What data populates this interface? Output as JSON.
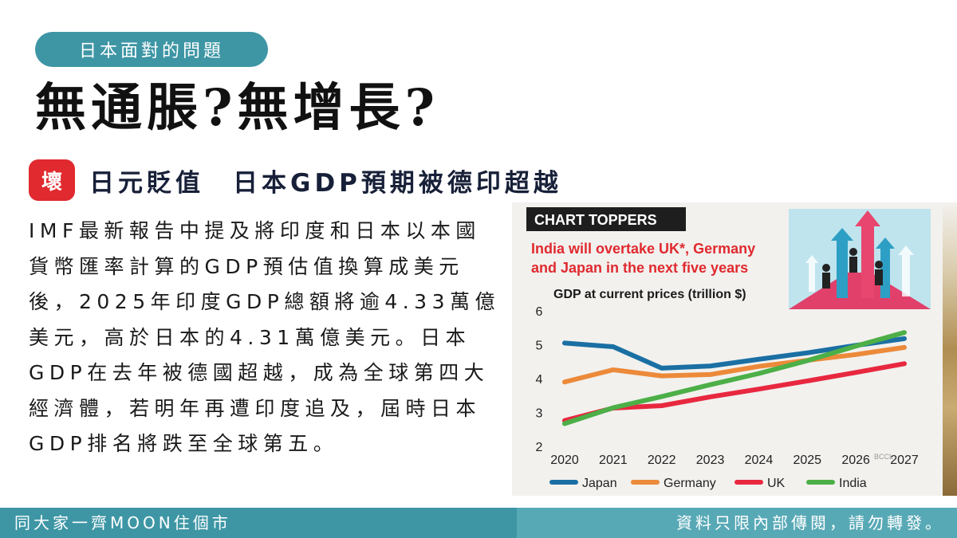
{
  "slide": {
    "topic_label": "日本面對的問題",
    "headline": "無通脹?無增長?",
    "bad_badge": "壞",
    "subheadline": "日元貶值　日本GDP預期被德印超越",
    "body": "IMF最新報告中提及將印度和日本以本國貨幣匯率計算的GDP預估值換算成美元後，2025年印度GDP總額將逾4.33萬億美元，高於日本的4.31萬億美元。日本GDP在去年被德國超越，成為全球第四大經濟體，若明年再遭印度追及，屆時日本GDP排名將跌至全球第五。",
    "footer_left": "同大家一齊MOON住個市",
    "footer_right": "資料只限內部傳閱，請勿轉發。"
  },
  "chart_data": {
    "type": "line",
    "banner": "CHART TOPPERS",
    "title": "India will overtake UK*, Germany and Japan in the next five years",
    "title_lines": [
      "India will overtake UK*, Germany",
      "and Japan in the next five years"
    ],
    "ylabel": "GDP at current prices (trillion $)",
    "watermark": "BCCL",
    "x": [
      2020,
      2021,
      2022,
      2023,
      2024,
      2025,
      2026,
      2027
    ],
    "ylim": [
      2,
      6
    ],
    "yticks": [
      2,
      3,
      4,
      5,
      6
    ],
    "grid": false,
    "legend_position": "bottom",
    "series": [
      {
        "name": "Japan",
        "color": "#1a6fa3",
        "values": [
          5.05,
          4.94,
          4.31,
          4.37,
          4.57,
          4.76,
          4.98,
          5.18
        ]
      },
      {
        "name": "Germany",
        "color": "#ec8a3a",
        "values": [
          3.9,
          4.26,
          4.08,
          4.12,
          4.36,
          4.54,
          4.71,
          4.92
        ]
      },
      {
        "name": "UK",
        "color": "#e8283f",
        "values": [
          2.76,
          3.13,
          3.2,
          3.46,
          3.69,
          3.93,
          4.18,
          4.44
        ]
      },
      {
        "name": "India",
        "color": "#4caf47",
        "values": [
          2.67,
          3.14,
          3.47,
          3.82,
          4.15,
          4.53,
          4.96,
          5.36
        ]
      }
    ]
  },
  "colors": {
    "accent_teal": "#3e96a5",
    "badge_red": "#e02a2f",
    "chart_title_red": "#e02a2f"
  }
}
